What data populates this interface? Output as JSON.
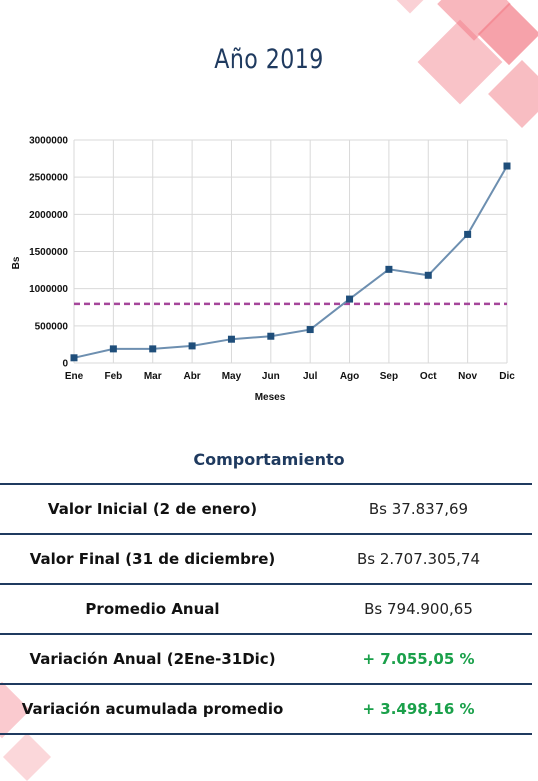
{
  "title": "Año 2019",
  "colors": {
    "title": "#1f3a5f",
    "series": "#6d8fb0",
    "marker": "#1f4e7a",
    "average_line": "#a5469a",
    "positive": "#1aa04a",
    "decor": "#f27b86"
  },
  "chart_data": {
    "type": "line",
    "xlabel": "Meses",
    "ylabel": "Bs",
    "categories": [
      "Ene",
      "Feb",
      "Mar",
      "Abr",
      "May",
      "Jun",
      "Jul",
      "Ago",
      "Sep",
      "Oct",
      "Nov",
      "Dic"
    ],
    "series": [
      {
        "values": [
          70000,
          190000,
          190000,
          230000,
          320000,
          360000,
          450000,
          860000,
          1260000,
          1180000,
          1730000,
          2650000
        ]
      }
    ],
    "reference_line": {
      "value": 794900.65,
      "style": "dashed"
    },
    "ylim": [
      0,
      3000000
    ],
    "yticks": [
      "0",
      "500000",
      "1000000",
      "1500000",
      "2000000",
      "2500000",
      "3000000"
    ],
    "grid": true,
    "legend": "none"
  },
  "comportamiento": {
    "title": "Comportamiento",
    "rows": [
      {
        "label": "Valor Inicial (2 de enero)",
        "value": "Bs 37.837,69",
        "positive": false
      },
      {
        "label": "Valor Final (31 de diciembre)",
        "value": "Bs 2.707.305,74",
        "positive": false
      },
      {
        "label": "Promedio Anual",
        "value": "Bs 794.900,65",
        "positive": false
      },
      {
        "label": "Variación Anual (2Ene-31Dic)",
        "value": "+ 7.055,05 %",
        "positive": true
      },
      {
        "label": "Variación acumulada promedio",
        "value": "+ 3.498,16 %",
        "positive": true
      }
    ]
  }
}
